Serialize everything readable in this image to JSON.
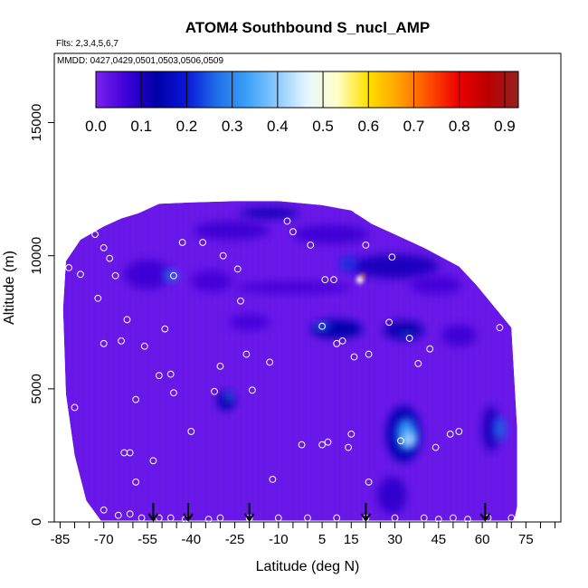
{
  "title": "ATOM4 Southbound S_nucl_AMP",
  "flights_label": "Flts: 2,3,4,5,6,7",
  "dates_label": "MMDD: 0427,0429,0501,0503,0506,0509",
  "chart_data": {
    "type": "heatmap",
    "xlabel": "Latitude (deg N)",
    "ylabel": "Altitude (m)",
    "xlim": [
      -87,
      87
    ],
    "ylim": [
      0,
      17600
    ],
    "x_ticks": [
      -85,
      -70,
      -55,
      -40,
      -25,
      -10,
      5,
      15,
      30,
      45,
      60,
      75
    ],
    "y_ticks": [
      0,
      5000,
      10000,
      15000
    ],
    "colorbar": {
      "min": 0.0,
      "max": 0.93,
      "ticks": [
        0.0,
        0.1,
        0.2,
        0.3,
        0.4,
        0.5,
        0.6,
        0.7,
        0.8,
        0.9
      ],
      "tick_labels": [
        "0.0",
        "0.1",
        "0.2",
        "0.3",
        "0.4",
        "0.5",
        "0.6",
        "0.7",
        "0.8",
        "0.9"
      ],
      "colors": [
        "#7b22f0",
        "#3f00d8",
        "#0000a8",
        "#0a16d8",
        "#1e6ee8",
        "#3aa0f8",
        "#8ccaff",
        "#e6f6ff",
        "#ffffc8",
        "#ffe000",
        "#ffa500",
        "#ff5000",
        "#ee0000",
        "#bb0000",
        "#962222"
      ]
    },
    "background_value": 0.02,
    "envelope": [
      [
        -83,
        9800
      ],
      [
        -78,
        10600
      ],
      [
        -70,
        11100
      ],
      [
        -64,
        11400
      ],
      [
        -58,
        11600
      ],
      [
        -51,
        11950
      ],
      [
        -40,
        12000
      ],
      [
        -25,
        12050
      ],
      [
        -10,
        12050
      ],
      [
        5,
        11900
      ],
      [
        15,
        11700
      ],
      [
        22,
        11200
      ],
      [
        30,
        10800
      ],
      [
        40,
        10300
      ],
      [
        52,
        9600
      ],
      [
        58,
        8900
      ],
      [
        64,
        8100
      ],
      [
        70,
        7300
      ],
      [
        72,
        3500
      ],
      [
        72,
        600
      ],
      [
        71,
        50
      ],
      [
        -71,
        50
      ],
      [
        -76,
        800
      ],
      [
        -80,
        2500
      ],
      [
        -83,
        4800
      ],
      [
        -84,
        8000
      ]
    ],
    "features": [
      {
        "lat": -13,
        "alt": 11600,
        "value": 0.11,
        "width": 20,
        "height": 420
      },
      {
        "lat": -26,
        "alt": 10950,
        "value": 0.07,
        "width": 26,
        "height": 700
      },
      {
        "lat": 8,
        "alt": 10800,
        "value": 0.07,
        "width": 26,
        "height": 700
      },
      {
        "lat": -55,
        "alt": 9300,
        "value": 0.07,
        "width": 16,
        "height": 1100
      },
      {
        "lat": -47,
        "alt": 9250,
        "value": 0.28,
        "width": 5,
        "height": 380
      },
      {
        "lat": -33,
        "alt": 9050,
        "value": 0.06,
        "width": 14,
        "height": 800
      },
      {
        "lat": -5,
        "alt": 8800,
        "value": 0.06,
        "width": 40,
        "height": 450
      },
      {
        "lat": 30,
        "alt": 9600,
        "value": 0.1,
        "width": 30,
        "height": 900
      },
      {
        "lat": 14,
        "alt": 9700,
        "value": 0.22,
        "width": 6,
        "height": 500
      },
      {
        "lat": 18,
        "alt": 9100,
        "value": 0.5,
        "width": 2.5,
        "height": 300
      },
      {
        "lat": 19,
        "alt": 9250,
        "value": 0.7,
        "width": 1,
        "height": 160
      },
      {
        "lat": 44,
        "alt": 8900,
        "value": 0.06,
        "width": 18,
        "height": 700
      },
      {
        "lat": -20,
        "alt": 7500,
        "value": 0.06,
        "width": 14,
        "height": 600
      },
      {
        "lat": 10,
        "alt": 7250,
        "value": 0.14,
        "width": 18,
        "height": 700
      },
      {
        "lat": 5,
        "alt": 7350,
        "value": 0.3,
        "width": 5,
        "height": 250
      },
      {
        "lat": 33,
        "alt": 7200,
        "value": 0.12,
        "width": 14,
        "height": 700
      },
      {
        "lat": 34,
        "alt": 7050,
        "value": 0.24,
        "width": 4,
        "height": 220
      },
      {
        "lat": 52,
        "alt": 7000,
        "value": 0.07,
        "width": 12,
        "height": 800
      },
      {
        "lat": -28,
        "alt": 4550,
        "value": 0.14,
        "width": 6,
        "height": 700
      },
      {
        "lat": -27,
        "alt": 4700,
        "value": 0.3,
        "width": 2.5,
        "height": 330
      },
      {
        "lat": 33,
        "alt": 3300,
        "value": 0.15,
        "width": 12,
        "height": 2100
      },
      {
        "lat": 34,
        "alt": 3300,
        "value": 0.32,
        "width": 7,
        "height": 1200
      },
      {
        "lat": 35,
        "alt": 3100,
        "value": 0.44,
        "width": 4,
        "height": 500
      },
      {
        "lat": 29,
        "alt": 1000,
        "value": 0.08,
        "width": 10,
        "height": 1400
      },
      {
        "lat": 63,
        "alt": 3500,
        "value": 0.1,
        "width": 6,
        "height": 1700
      },
      {
        "lat": 66,
        "alt": 3500,
        "value": 0.26,
        "width": 4,
        "height": 900
      }
    ],
    "points": [
      [
        -82,
        9550
      ],
      [
        -80,
        4300
      ],
      [
        -78,
        9300
      ],
      [
        -76,
        11200
      ],
      [
        -73,
        10800
      ],
      [
        -72,
        8400
      ],
      [
        -70,
        10300
      ],
      [
        -70,
        6700
      ],
      [
        -68,
        9900
      ],
      [
        -66,
        9250
      ],
      [
        -64,
        6800
      ],
      [
        -62,
        7600
      ],
      [
        -59,
        4600
      ],
      [
        -56,
        6600
      ],
      [
        -51,
        5500
      ],
      [
        -47,
        5550
      ],
      [
        -49,
        7250
      ],
      [
        -46,
        9250
      ],
      [
        -46,
        4850
      ],
      [
        -43,
        10500
      ],
      [
        -40,
        3400
      ],
      [
        -36,
        10500
      ],
      [
        -32,
        4900
      ],
      [
        -30,
        5850
      ],
      [
        -29,
        10000
      ],
      [
        -24,
        9500
      ],
      [
        -23,
        8300
      ],
      [
        -21,
        6300
      ],
      [
        -19,
        4950
      ],
      [
        -13,
        6000
      ],
      [
        -12,
        1600
      ],
      [
        -7,
        11300
      ],
      [
        -5,
        10900
      ],
      [
        -2,
        2900
      ],
      [
        1,
        10400
      ],
      [
        5,
        7350
      ],
      [
        5,
        2900
      ],
      [
        6,
        9100
      ],
      [
        7,
        3000
      ],
      [
        9,
        9100
      ],
      [
        10,
        6700
      ],
      [
        12,
        6800
      ],
      [
        14,
        2800
      ],
      [
        15,
        3300
      ],
      [
        16,
        6200
      ],
      [
        17,
        11700
      ],
      [
        20,
        10400
      ],
      [
        21,
        6300
      ],
      [
        21,
        1500
      ],
      [
        28,
        7500
      ],
      [
        29,
        9950
      ],
      [
        32,
        3050
      ],
      [
        35,
        6900
      ],
      [
        38,
        5950
      ],
      [
        42,
        6500
      ],
      [
        44,
        2800
      ],
      [
        49,
        3300
      ],
      [
        52,
        3400
      ],
      [
        -63,
        2600
      ],
      [
        -61,
        2600
      ],
      [
        -59,
        1500
      ],
      [
        -53,
        2300
      ],
      [
        -57,
        150
      ],
      [
        -51,
        150
      ],
      [
        -47,
        150
      ],
      [
        -42,
        100
      ],
      [
        -30,
        150
      ],
      [
        -20,
        150
      ],
      [
        -10,
        150
      ],
      [
        0,
        150
      ],
      [
        10,
        150
      ],
      [
        20,
        150
      ],
      [
        30,
        150
      ],
      [
        40,
        150
      ],
      [
        50,
        150
      ],
      [
        55,
        100
      ],
      [
        62,
        150
      ],
      [
        70,
        150
      ],
      [
        -70,
        450
      ],
      [
        -65,
        250
      ],
      [
        -61,
        300
      ],
      [
        -34,
        100
      ],
      [
        45,
        100
      ],
      [
        66,
        7300
      ]
    ],
    "flight_markers": [
      -53,
      -41,
      -20,
      20,
      61
    ],
    "flight_marker_color": "#000000",
    "point_color": "#ffffff"
  }
}
